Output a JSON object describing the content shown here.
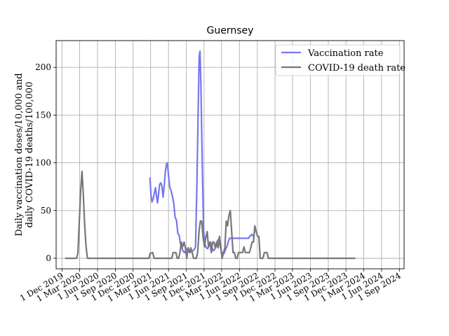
{
  "chart_data": {
    "type": "line",
    "title": "Guernsey",
    "xlabel": "",
    "ylabel_lines": [
      "Daily vaccination doses/10,000 and",
      "daily COVID-19 deaths/100,000"
    ],
    "x_ticks": [
      "2019-12-01",
      "2020-03-01",
      "2020-06-01",
      "2020-09-01",
      "2020-12-01",
      "2021-03-01",
      "2021-06-01",
      "2021-09-01",
      "2021-12-01",
      "2022-03-01",
      "2022-06-01",
      "2022-09-01",
      "2022-12-01",
      "2023-03-01",
      "2023-06-01",
      "2023-09-01",
      "2023-12-01",
      "2024-03-01",
      "2024-06-01",
      "2024-09-01"
    ],
    "x_tick_labels": [
      "1 Dec 2019",
      "1 Mar 2020",
      "1 Jun 2020",
      "1 Sep 2020",
      "1 Dec 2020",
      "1 Mar 2021",
      "1 Jun 2021",
      "1 Sep 2021",
      "1 Dec 2021",
      "1 Mar 2022",
      "1 Jun 2022",
      "1 Sep 2022",
      "1 Dec 2022",
      "1 Mar 2023",
      "1 Jun 2023",
      "1 Sep 2023",
      "1 Dec 2023",
      "1 Mar 2024",
      "1 Jun 2024",
      "1 Sep 2024"
    ],
    "xlim": [
      "2019-11-01",
      "2024-09-25"
    ],
    "y_ticks": [
      0,
      50,
      100,
      150,
      200
    ],
    "ylim": [
      -11,
      228
    ],
    "grid": true,
    "legend_position": "top-right",
    "series": [
      {
        "name": "Vaccination rate",
        "color": "#7777ee",
        "points": [
          [
            "2021-02-26",
            84
          ],
          [
            "2021-03-03",
            66
          ],
          [
            "2021-03-08",
            59
          ],
          [
            "2021-03-14",
            62
          ],
          [
            "2021-03-20",
            68
          ],
          [
            "2021-03-26",
            74
          ],
          [
            "2021-04-01",
            64
          ],
          [
            "2021-04-06",
            58
          ],
          [
            "2021-04-10",
            66
          ],
          [
            "2021-04-16",
            77
          ],
          [
            "2021-04-22",
            79
          ],
          [
            "2021-04-28",
            76
          ],
          [
            "2021-05-04",
            64
          ],
          [
            "2021-05-10",
            76
          ],
          [
            "2021-05-16",
            91
          ],
          [
            "2021-05-22",
            99
          ],
          [
            "2021-05-26",
            100
          ],
          [
            "2021-06-01",
            87
          ],
          [
            "2021-06-07",
            75
          ],
          [
            "2021-06-14",
            71
          ],
          [
            "2021-06-21",
            65
          ],
          [
            "2021-06-28",
            58
          ],
          [
            "2021-07-05",
            43
          ],
          [
            "2021-07-12",
            40
          ],
          [
            "2021-07-19",
            26
          ],
          [
            "2021-07-26",
            24
          ],
          [
            "2021-08-02",
            15
          ],
          [
            "2021-08-09",
            11
          ],
          [
            "2021-08-16",
            7
          ],
          [
            "2021-08-23",
            6
          ],
          [
            "2021-08-30",
            9
          ],
          [
            "2021-09-06",
            10
          ],
          [
            "2021-09-13",
            9
          ],
          [
            "2021-09-20",
            6
          ],
          [
            "2021-09-27",
            7
          ],
          [
            "2021-10-04",
            8
          ],
          [
            "2021-10-11",
            9
          ],
          [
            "2021-10-18",
            12
          ],
          [
            "2021-10-25",
            75
          ],
          [
            "2021-11-01",
            160
          ],
          [
            "2021-11-06",
            211
          ],
          [
            "2021-11-10",
            217
          ],
          [
            "2021-11-15",
            180
          ],
          [
            "2021-11-22",
            95
          ],
          [
            "2021-11-29",
            28
          ],
          [
            "2021-12-06",
            14
          ],
          [
            "2021-12-13",
            11
          ],
          [
            "2021-12-20",
            10
          ],
          [
            "2021-12-27",
            15
          ],
          [
            "2022-01-03",
            17
          ],
          [
            "2022-01-10",
            12
          ],
          [
            "2022-01-17",
            8
          ],
          [
            "2022-01-24",
            9
          ],
          [
            "2022-01-31",
            12
          ],
          [
            "2022-02-07",
            18
          ],
          [
            "2022-02-14",
            20
          ],
          [
            "2022-02-21",
            14
          ],
          [
            "2022-02-28",
            7
          ],
          [
            "2022-03-07",
            5
          ],
          [
            "2022-03-14",
            5
          ],
          [
            "2022-03-21",
            9
          ],
          [
            "2022-03-28",
            12
          ],
          [
            "2022-04-04",
            17
          ],
          [
            "2022-04-11",
            21
          ],
          [
            "2022-04-18",
            21
          ],
          [
            "2022-05-09",
            21
          ],
          [
            "2022-06-06",
            21
          ],
          [
            "2022-07-04",
            21
          ],
          [
            "2022-07-18",
            21
          ],
          [
            "2022-07-28",
            24
          ],
          [
            "2022-08-04",
            25
          ],
          [
            "2022-08-11",
            23
          ]
        ]
      },
      {
        "name": "COVID-19 death rate",
        "color": "#777777",
        "points": [
          [
            "2019-12-20",
            0
          ],
          [
            "2020-02-14",
            0
          ],
          [
            "2020-02-21",
            5
          ],
          [
            "2020-03-06",
            70
          ],
          [
            "2020-03-13",
            91
          ],
          [
            "2020-03-20",
            66
          ],
          [
            "2020-03-27",
            35
          ],
          [
            "2020-04-03",
            12
          ],
          [
            "2020-04-10",
            0
          ],
          [
            "2020-05-01",
            0
          ],
          [
            "2020-08-01",
            0
          ],
          [
            "2020-11-01",
            0
          ],
          [
            "2021-02-20",
            0
          ],
          [
            "2021-02-27",
            5
          ],
          [
            "2021-03-12",
            6
          ],
          [
            "2021-03-19",
            0
          ],
          [
            "2021-04-09",
            0
          ],
          [
            "2021-05-07",
            0
          ],
          [
            "2021-06-04",
            0
          ],
          [
            "2021-06-18",
            0
          ],
          [
            "2021-06-25",
            6
          ],
          [
            "2021-07-09",
            6
          ],
          [
            "2021-07-16",
            0
          ],
          [
            "2021-07-23",
            0
          ],
          [
            "2021-07-30",
            6
          ],
          [
            "2021-08-06",
            17
          ],
          [
            "2021-08-13",
            12
          ],
          [
            "2021-08-20",
            17
          ],
          [
            "2021-08-27",
            11
          ],
          [
            "2021-09-03",
            0
          ],
          [
            "2021-09-10",
            11
          ],
          [
            "2021-09-17",
            6
          ],
          [
            "2021-09-24",
            11
          ],
          [
            "2021-10-01",
            6
          ],
          [
            "2021-10-08",
            0
          ],
          [
            "2021-10-15",
            0
          ],
          [
            "2021-10-22",
            0
          ],
          [
            "2021-10-29",
            6
          ],
          [
            "2021-11-05",
            28
          ],
          [
            "2021-11-12",
            39
          ],
          [
            "2021-11-19",
            39
          ],
          [
            "2021-11-26",
            22
          ],
          [
            "2021-12-03",
            12
          ],
          [
            "2021-12-10",
            22
          ],
          [
            "2021-12-17",
            28
          ],
          [
            "2021-12-24",
            12
          ],
          [
            "2021-12-31",
            17
          ],
          [
            "2022-01-07",
            6
          ],
          [
            "2022-01-14",
            17
          ],
          [
            "2022-01-21",
            17
          ],
          [
            "2022-01-28",
            11
          ],
          [
            "2022-02-04",
            17
          ],
          [
            "2022-02-11",
            11
          ],
          [
            "2022-02-18",
            23
          ],
          [
            "2022-02-25",
            11
          ],
          [
            "2022-03-04",
            0
          ],
          [
            "2022-03-11",
            6
          ],
          [
            "2022-03-18",
            11
          ],
          [
            "2022-03-25",
            39
          ],
          [
            "2022-04-01",
            34
          ],
          [
            "2022-04-08",
            45
          ],
          [
            "2022-04-15",
            50
          ],
          [
            "2022-04-22",
            28
          ],
          [
            "2022-04-29",
            6
          ],
          [
            "2022-05-06",
            6
          ],
          [
            "2022-05-13",
            0
          ],
          [
            "2022-05-20",
            0
          ],
          [
            "2022-05-27",
            6
          ],
          [
            "2022-06-03",
            6
          ],
          [
            "2022-06-10",
            6
          ],
          [
            "2022-06-17",
            6
          ],
          [
            "2022-06-24",
            12
          ],
          [
            "2022-07-01",
            6
          ],
          [
            "2022-07-08",
            6
          ],
          [
            "2022-07-15",
            6
          ],
          [
            "2022-07-22",
            6
          ],
          [
            "2022-07-29",
            11
          ],
          [
            "2022-08-05",
            17
          ],
          [
            "2022-08-12",
            17
          ],
          [
            "2022-08-19",
            34
          ],
          [
            "2022-08-26",
            28
          ],
          [
            "2022-09-02",
            23
          ],
          [
            "2022-09-09",
            23
          ],
          [
            "2022-09-16",
            0
          ],
          [
            "2022-09-23",
            0
          ],
          [
            "2022-09-30",
            0
          ],
          [
            "2022-10-07",
            6
          ],
          [
            "2022-10-21",
            6
          ],
          [
            "2022-10-28",
            0
          ],
          [
            "2022-11-04",
            0
          ],
          [
            "2023-02-01",
            0
          ],
          [
            "2023-05-01",
            0
          ],
          [
            "2023-08-01",
            0
          ],
          [
            "2023-11-01",
            0
          ],
          [
            "2024-01-15",
            0
          ]
        ]
      }
    ]
  }
}
